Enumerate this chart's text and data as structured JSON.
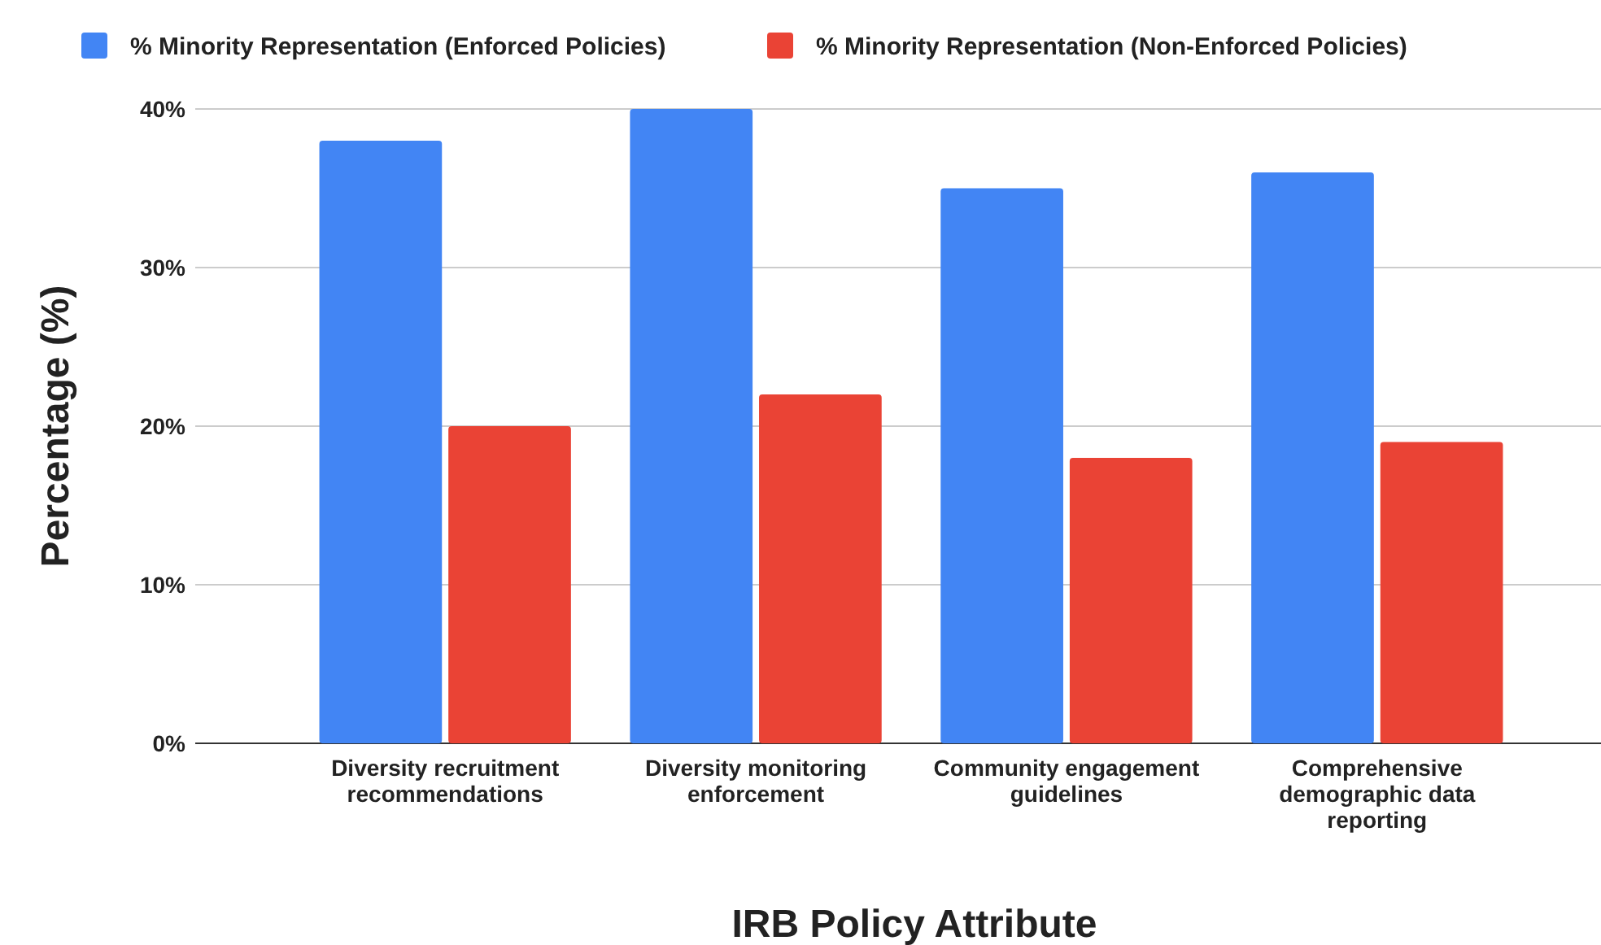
{
  "chart_data": {
    "type": "bar",
    "xlabel": "IRB Policy Attribute",
    "ylabel": "Percentage (%)",
    "categories": [
      "Diversity recruitment recommendations",
      "Diversity monitoring enforcement",
      "Community engagement guidelines",
      "Comprehensive demographic data reporting"
    ],
    "series": [
      {
        "name": "% Minority Representation (Enforced Policies)",
        "color": "#4285f4",
        "values": [
          38,
          40,
          35,
          36
        ]
      },
      {
        "name": "% Minority Representation (Non-Enforced Policies)",
        "color": "#ea4335",
        "values": [
          20,
          22,
          18,
          19
        ]
      }
    ],
    "ylim": [
      0,
      40
    ],
    "yticks": [
      {
        "value": 0,
        "label": "0%"
      },
      {
        "value": 10,
        "label": "10%"
      },
      {
        "value": 20,
        "label": "20%"
      },
      {
        "value": 30,
        "label": "30%"
      },
      {
        "value": 40,
        "label": "40%"
      }
    ],
    "grid": "y",
    "legend": "top left"
  }
}
